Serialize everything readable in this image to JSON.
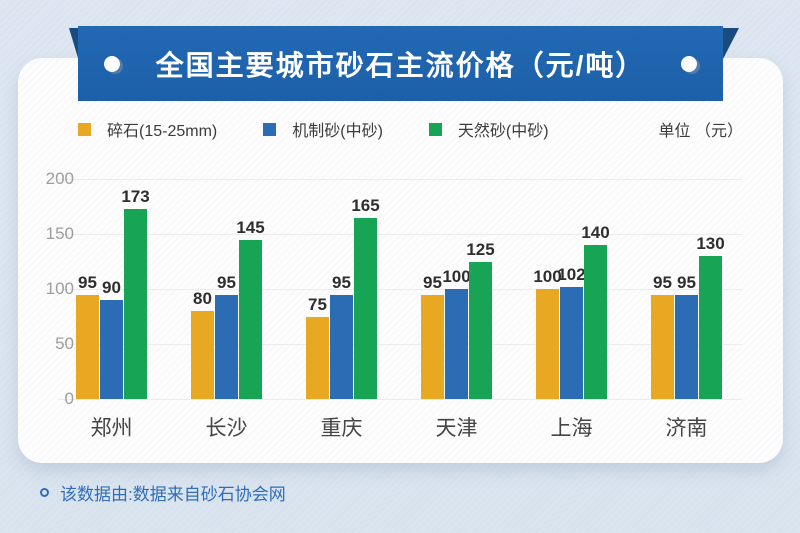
{
  "banner": {
    "title": "全国主要城市砂石主流价格（元/吨）"
  },
  "legend": {
    "items": [
      {
        "label": "碎石(15-25mm)",
        "color": "#E9A822"
      },
      {
        "label": "机制砂(中砂)",
        "color": "#2B6CB4"
      },
      {
        "label": "天然砂(中砂)",
        "color": "#17A455"
      }
    ],
    "unit_label": "单位 （元）"
  },
  "chart_data": {
    "type": "bar",
    "title": "全国主要城市砂石主流价格（元/吨）",
    "categories": [
      "郑州",
      "长沙",
      "重庆",
      "天津",
      "上海",
      "济南"
    ],
    "series": [
      {
        "name": "碎石(15-25mm)",
        "color": "#E9A822",
        "values": [
          95,
          80,
          75,
          95,
          100,
          95
        ]
      },
      {
        "name": "机制砂(中砂)",
        "color": "#2B6CB4",
        "values": [
          90,
          95,
          95,
          100,
          102,
          95
        ]
      },
      {
        "name": "天然砂(中砂)",
        "color": "#17A455",
        "values": [
          173,
          145,
          165,
          125,
          140,
          130
        ]
      }
    ],
    "xlabel": "",
    "ylabel": "",
    "unit": "元",
    "ylim": [
      0,
      200
    ],
    "yticks": [
      0,
      50,
      100,
      150,
      200
    ],
    "grid": true,
    "legend_position": "top",
    "value_labels": true
  },
  "footer": {
    "text": "该数据由:数据来自砂石协会网"
  },
  "colors": {
    "banner_blue": "#1F63AC",
    "ribbon_fold": "#1A4B80",
    "crushed_stone": "#E9A822",
    "machine_sand": "#2B6CB4",
    "natural_sand": "#17A455",
    "footer_text": "#2F6EB6",
    "page_background": "#DDE6F1",
    "card_background": "#FDFDFD"
  }
}
